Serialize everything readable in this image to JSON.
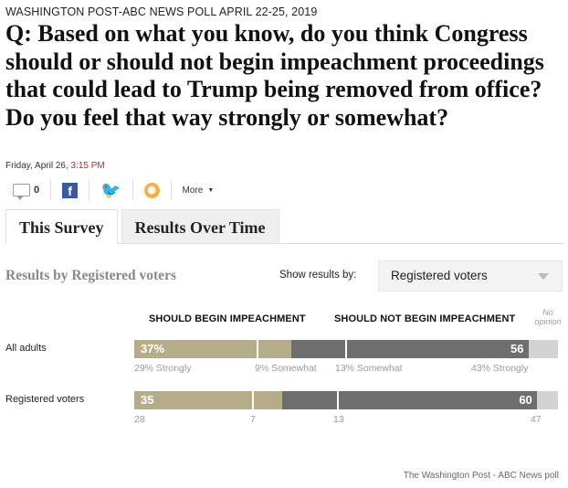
{
  "kicker": "WASHINGTON POST-ABC NEWS POLL APRIL 22-25, 2019",
  "question": "Q: Based on what you know, do you think Congress should or should not begin impeachment proceedings that could lead to Trump being removed from office? Do you feel that way strongly or somewhat?",
  "dateline": {
    "date": "Friday, April 26, ",
    "time": "3:15 PM"
  },
  "share": {
    "comment_count": "0",
    "facebook": "f",
    "twitter": "🐦",
    "more_label": "More",
    "more_caret": "▼"
  },
  "tabs": [
    {
      "label": "This Survey"
    },
    {
      "label": "Results Over Time"
    }
  ],
  "results_label": "Results by Registered voters",
  "show_results_label": "Show results by:",
  "select_value": "Registered voters",
  "columns": {
    "should": "SHOULD BEGIN IMPEACHMENT",
    "should_not": "SHOULD NOT BEGIN IMPEACHMENT",
    "no_opinion_line1": "No",
    "no_opinion_line2": "opinion"
  },
  "rows": [
    {
      "label": "All adults",
      "should_total": "37%",
      "should_not_total": "56",
      "should_value": 37,
      "should_strongly": 29,
      "should_somewhat": 9,
      "should_not_value": 56,
      "should_not_somewhat": 13,
      "should_not_strongly": 43,
      "no_opinion_value": 7,
      "sub": {
        "strongly": "29% Strongly",
        "somewhat": "9% Somewhat",
        "not_somewhat": "13% Somewhat",
        "not_strongly": "43% Strongly"
      }
    },
    {
      "label": "Registered voters",
      "should_total": "35",
      "should_not_total": "60",
      "should_value": 35,
      "should_strongly": 28,
      "should_somewhat": 7,
      "should_not_value": 60,
      "should_not_somewhat": 13,
      "should_not_strongly": 47,
      "no_opinion_value": 5,
      "sub": {
        "strongly": "28",
        "somewhat": "7",
        "not_somewhat": "13",
        "not_strongly": "47"
      }
    }
  ],
  "colors": {
    "should": "#b5ad8a",
    "should_not": "#6e6e6e",
    "no_opinion": "#d3d3d3",
    "time": "#c0262d"
  },
  "source": "The Washington Post - ABC News poll"
}
